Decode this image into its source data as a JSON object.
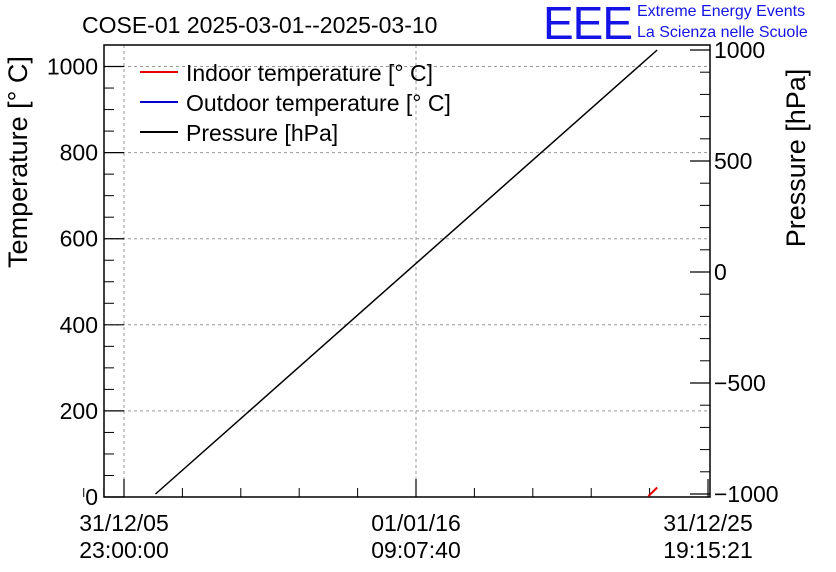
{
  "chart_data": {
    "type": "line",
    "title": "COSE-01 2025-03-01--2025-03-10",
    "ylabel": "Temperature [° C]",
    "y2label": "Pressure [hPa]",
    "ylim": [
      0,
      1050
    ],
    "y2lim": [
      -1000,
      1000
    ],
    "yticks": [
      0,
      200,
      400,
      600,
      800,
      1000
    ],
    "y2ticks": [
      -1000,
      -500,
      0,
      500,
      1000
    ],
    "xticks": [
      {
        "line1": "31/12/05",
        "line2": "23:00:00",
        "frac": 0.0
      },
      {
        "line1": "01/01/16",
        "line2": "09:07:40",
        "frac": 0.5
      },
      {
        "line1": "31/12/25",
        "line2": "19:15:21",
        "frac": 1.0
      }
    ],
    "legend": [
      {
        "label": "Indoor temperature [° C]",
        "color": "#e60000"
      },
      {
        "label": "Outdoor temperature [° C]",
        "color": "#0000cc"
      },
      {
        "label": "Pressure [hPa]",
        "color": "#000000"
      }
    ],
    "legend_position": "top-left",
    "grid": true,
    "series": [
      {
        "name": "Pressure [hPa]",
        "axis": "right",
        "color": "#000000",
        "points": [
          {
            "x": 0.054,
            "y": -1000
          },
          {
            "x": 0.913,
            "y": 1000
          }
        ]
      },
      {
        "name": "Indoor temperature [° C]",
        "axis": "left",
        "color": "#e60000",
        "points": [
          {
            "x": 0.898,
            "y": 2
          },
          {
            "x": 0.913,
            "y": 22
          }
        ]
      },
      {
        "name": "Outdoor temperature [° C]",
        "axis": "left",
        "color": "#0000cc",
        "points": []
      }
    ]
  },
  "branding": {
    "logo_text": "EEE",
    "org_line1": "Extreme Energy Events",
    "org_line2": "La Scienza nelle Scuole"
  }
}
